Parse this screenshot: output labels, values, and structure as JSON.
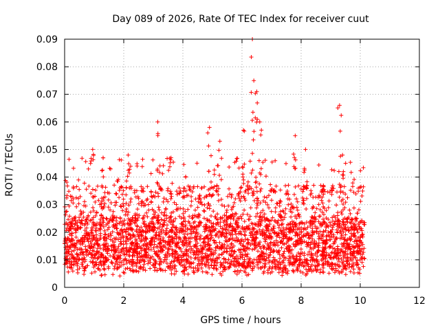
{
  "chart_data": {
    "type": "scatter",
    "title": "Day 089 of 2026, Rate Of TEC Index for receiver cuut",
    "xlabel": "GPS time / hours",
    "ylabel": "ROTI / TECUs",
    "xlim": [
      0,
      12
    ],
    "ylim": [
      0,
      0.09
    ],
    "grid": true,
    "x_ticks": [
      0,
      2,
      4,
      6,
      8,
      10,
      12
    ],
    "x_tick_labels": [
      "0",
      "2",
      "4",
      "6",
      "8",
      "10",
      "12"
    ],
    "y_ticks": [
      0,
      0.01,
      0.02,
      0.03,
      0.04,
      0.05,
      0.06,
      0.07,
      0.08,
      0.09
    ],
    "y_tick_labels": [
      "0",
      "0.01",
      "0.02",
      "0.03",
      "0.04",
      "0.05",
      "0.06",
      "0.07",
      "0.08",
      "0.09"
    ],
    "marker": "plus",
    "color": "#ff0000",
    "series": [
      {
        "name": "ROTI",
        "x_range": [
          0.0,
          10.15
        ],
        "typical_y": [
          0.006,
          0.025
        ],
        "notes": "dense cloud of points; upper envelope mostly 0.03-0.045 with spikes",
        "spikes": [
          {
            "x": 0.95,
            "y": 0.05
          },
          {
            "x": 1.3,
            "y": 0.047
          },
          {
            "x": 2.15,
            "y": 0.048
          },
          {
            "x": 3.15,
            "y": 0.06
          },
          {
            "x": 3.6,
            "y": 0.047
          },
          {
            "x": 4.9,
            "y": 0.058
          },
          {
            "x": 5.25,
            "y": 0.053
          },
          {
            "x": 6.05,
            "y": 0.057
          },
          {
            "x": 6.35,
            "y": 0.09
          },
          {
            "x": 6.4,
            "y": 0.075
          },
          {
            "x": 6.5,
            "y": 0.071
          },
          {
            "x": 6.6,
            "y": 0.06
          },
          {
            "x": 7.8,
            "y": 0.055
          },
          {
            "x": 8.15,
            "y": 0.05
          },
          {
            "x": 9.3,
            "y": 0.066
          },
          {
            "x": 9.4,
            "y": 0.048
          }
        ]
      }
    ]
  }
}
